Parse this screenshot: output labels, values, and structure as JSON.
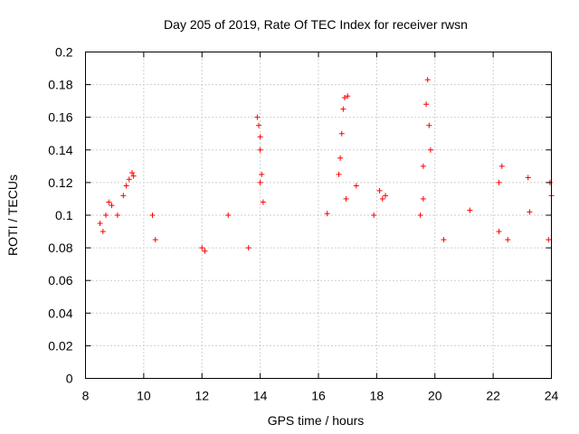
{
  "chart_data": {
    "type": "scatter",
    "title": "Day 205 of 2019, Rate Of TEC Index for receiver rwsn",
    "xlabel": "GPS time / hours",
    "ylabel": "ROTI / TECUs",
    "xlim": [
      8,
      24
    ],
    "ylim": [
      0,
      0.2
    ],
    "xticks": [
      8,
      10,
      12,
      14,
      16,
      18,
      20,
      22,
      24
    ],
    "yticks": [
      0,
      0.02,
      0.04,
      0.06,
      0.08,
      0.1,
      0.12,
      0.14,
      0.16,
      0.18,
      0.2
    ],
    "ytick_labels": [
      "0",
      "0.02",
      "0.04",
      "0.06",
      "0.08",
      "0.1",
      "0.12",
      "0.14",
      "0.16",
      "0.18",
      "0.2"
    ],
    "grid": true,
    "marker": "+",
    "series": [
      {
        "name": "ROTI",
        "color": "#ff0000",
        "points": [
          [
            8.5,
            0.095
          ],
          [
            8.6,
            0.09
          ],
          [
            8.7,
            0.1
          ],
          [
            8.8,
            0.108
          ],
          [
            8.9,
            0.106
          ],
          [
            9.1,
            0.1
          ],
          [
            9.3,
            0.112
          ],
          [
            9.4,
            0.118
          ],
          [
            9.5,
            0.122
          ],
          [
            9.6,
            0.126
          ],
          [
            9.65,
            0.124
          ],
          [
            10.3,
            0.1
          ],
          [
            10.4,
            0.085
          ],
          [
            12.0,
            0.08
          ],
          [
            12.1,
            0.078
          ],
          [
            12.9,
            0.1
          ],
          [
            13.6,
            0.08
          ],
          [
            13.9,
            0.16
          ],
          [
            13.95,
            0.155
          ],
          [
            14.0,
            0.148
          ],
          [
            14.0,
            0.14
          ],
          [
            14.05,
            0.125
          ],
          [
            14.1,
            0.108
          ],
          [
            14.0,
            0.12
          ],
          [
            16.3,
            0.101
          ],
          [
            16.7,
            0.125
          ],
          [
            16.75,
            0.135
          ],
          [
            16.8,
            0.15
          ],
          [
            16.85,
            0.165
          ],
          [
            16.9,
            0.172
          ],
          [
            17.0,
            0.173
          ],
          [
            16.95,
            0.11
          ],
          [
            17.3,
            0.118
          ],
          [
            17.9,
            0.1
          ],
          [
            18.1,
            0.115
          ],
          [
            18.2,
            0.11
          ],
          [
            18.3,
            0.112
          ],
          [
            19.5,
            0.1
          ],
          [
            19.6,
            0.13
          ],
          [
            19.7,
            0.168
          ],
          [
            19.75,
            0.183
          ],
          [
            19.8,
            0.155
          ],
          [
            19.85,
            0.14
          ],
          [
            19.6,
            0.11
          ],
          [
            20.3,
            0.085
          ],
          [
            21.2,
            0.103
          ],
          [
            22.2,
            0.09
          ],
          [
            22.3,
            0.13
          ],
          [
            22.2,
            0.12
          ],
          [
            22.5,
            0.085
          ],
          [
            23.2,
            0.123
          ],
          [
            23.25,
            0.102
          ],
          [
            23.95,
            0.12
          ],
          [
            24.0,
            0.112
          ],
          [
            23.9,
            0.085
          ]
        ]
      }
    ]
  }
}
